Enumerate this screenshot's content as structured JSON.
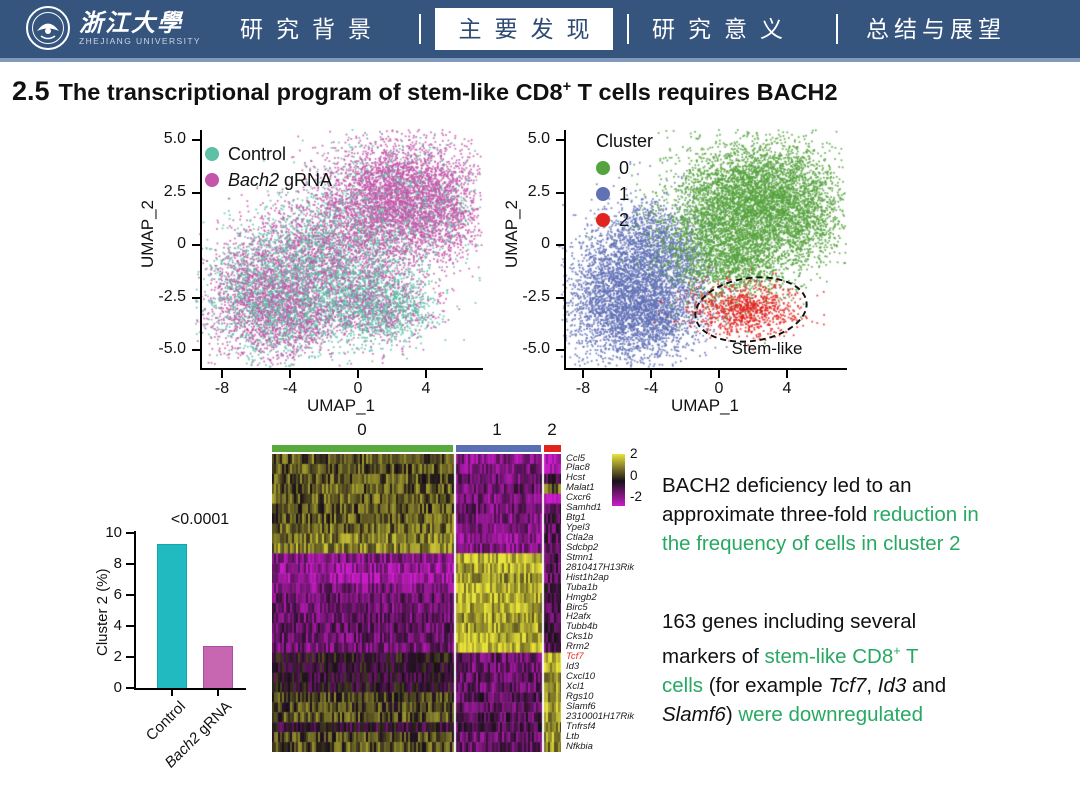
{
  "colors": {
    "text_green": "#28a963",
    "header_blue": "#35547e",
    "header_strip": "#8099bb"
  },
  "header": {
    "bg_color": "#35547e",
    "university_cn": "浙江大學",
    "university_en": "ZHEJIANG UNIVERSITY",
    "nav": [
      {
        "label": "研究背景",
        "active": false
      },
      {
        "label": "主要发现",
        "active": true
      },
      {
        "label": "研究意义",
        "active": false
      },
      {
        "label": "总结与展望",
        "active": false
      }
    ]
  },
  "title": {
    "number": "2.5",
    "segments": [
      {
        "t": "The transcriptional program of stem-like CD8"
      },
      {
        "t": "+",
        "sup": true
      },
      {
        "t": " T cells requires BACH2"
      }
    ]
  },
  "chart_data": [
    {
      "type": "scatter",
      "name": "umap-genotype",
      "xlabel": "UMAP_1",
      "ylabel": "UMAP_2",
      "xticks": {
        "labels": [
          "-8",
          "-4",
          "0",
          "4"
        ],
        "values": [
          -8,
          -4,
          0,
          4
        ]
      },
      "yticks": {
        "labels": [
          "5.0",
          "2.5",
          "0",
          "-2.5",
          "-5.0"
        ],
        "values": [
          5,
          2.5,
          0,
          -2.5,
          -5
        ]
      },
      "legend": [
        {
          "color": "#5cbfa6",
          "segments": [
            {
              "t": "Control"
            }
          ]
        },
        {
          "color": "#c455aa",
          "segments": [
            {
              "t": "Bach2",
              "italic": true
            },
            {
              "t": " gRNA"
            }
          ]
        }
      ],
      "blobs": [
        {
          "cx": -5.9,
          "cy": -2.3,
          "sx": 1.55,
          "sy": 1.6,
          "n": 2600,
          "pm": 0.58
        },
        {
          "cx": -2.9,
          "cy": -0.9,
          "sx": 1.5,
          "sy": 1.4,
          "n": 1600,
          "pm": 0.45
        },
        {
          "cx": 0.3,
          "cy": 1.1,
          "sx": 2.0,
          "sy": 1.6,
          "n": 2400,
          "pm": 0.66
        },
        {
          "cx": 2.9,
          "cy": 2.5,
          "sx": 2.0,
          "sy": 1.3,
          "n": 2800,
          "pm": 0.88
        },
        {
          "cx": 5.0,
          "cy": 1.2,
          "sx": 1.2,
          "sy": 1.1,
          "n": 600,
          "pm": 0.8
        },
        {
          "cx": 0.3,
          "cy": -2.3,
          "sx": 1.9,
          "sy": 1.1,
          "n": 1500,
          "pm": 0.32
        },
        {
          "cx": 1.5,
          "cy": -3.2,
          "sx": 1.5,
          "sy": 0.7,
          "n": 800,
          "pm": 0.45
        },
        {
          "cx": -3.7,
          "cy": -3.6,
          "sx": 1.4,
          "sy": 0.85,
          "n": 800,
          "pm": 0.58
        }
      ]
    },
    {
      "type": "scatter",
      "name": "umap-clusters",
      "xlabel": "UMAP_1",
      "ylabel": "UMAP_2",
      "legend_title": "Cluster",
      "xticks": {
        "labels": [
          "-8",
          "-4",
          "0",
          "4"
        ],
        "values": [
          -8,
          -4,
          0,
          4
        ]
      },
      "yticks": {
        "labels": [
          "5.0",
          "2.5",
          "0",
          "-2.5",
          "-5.0"
        ],
        "values": [
          5,
          2.5,
          0,
          -2.5,
          -5
        ]
      },
      "clusters": [
        {
          "name": "0",
          "color": "#55a33e"
        },
        {
          "name": "1",
          "color": "#6171b6"
        },
        {
          "name": "2",
          "color": "#e22420"
        }
      ],
      "annotation": {
        "label": "Stem-like"
      },
      "blobs": [
        {
          "cx": -5.9,
          "cy": -2.3,
          "sx": 1.55,
          "sy": 1.6,
          "n": 2600,
          "cluster": 1
        },
        {
          "cx": -3.0,
          "cy": -0.9,
          "sx": 1.5,
          "sy": 1.4,
          "n": 1500,
          "cluster": 1
        },
        {
          "cx": -3.7,
          "cy": -3.6,
          "sx": 1.4,
          "sy": 0.85,
          "n": 800,
          "cluster": 1
        },
        {
          "cx": -4.6,
          "cy": 0.4,
          "sx": 1.1,
          "sy": 0.9,
          "n": 400,
          "cluster": 1
        },
        {
          "cx": 0.4,
          "cy": 1.1,
          "sx": 2.0,
          "sy": 1.6,
          "n": 2500,
          "cluster": 0
        },
        {
          "cx": 2.9,
          "cy": 2.5,
          "sx": 2.0,
          "sy": 1.3,
          "n": 2800,
          "cluster": 0
        },
        {
          "cx": 5.0,
          "cy": 1.0,
          "sx": 1.2,
          "sy": 1.1,
          "n": 600,
          "cluster": 0
        },
        {
          "cx": 0.9,
          "cy": -0.8,
          "sx": 1.7,
          "sy": 0.9,
          "n": 900,
          "cluster": 0
        },
        {
          "cx": 1.5,
          "cy": -3.05,
          "sx": 1.5,
          "sy": 0.62,
          "n": 900,
          "cluster": 2
        }
      ]
    },
    {
      "type": "bar",
      "name": "cluster2-frequency",
      "ylabel": "Cluster 2 (%)",
      "ylim": [
        0,
        10
      ],
      "yticks": {
        "labels": [
          "0",
          "2",
          "4",
          "6",
          "8",
          "10"
        ],
        "values": [
          0,
          2,
          4,
          6,
          8,
          10
        ]
      },
      "pvalue": "<0.0001",
      "categories": [
        "Control",
        "Bach2 gRNA"
      ],
      "values": [
        9.3,
        2.7
      ],
      "bars": [
        {
          "value": 9.3,
          "color": "#22bac1",
          "border": "#17a3aa",
          "segments": [
            {
              "t": "Control"
            }
          ]
        },
        {
          "value": 2.7,
          "color": "#c767b1",
          "border": "#a94f9d",
          "segments": [
            {
              "t": "Bach2",
              "italic": true
            },
            {
              "t": " gRNA"
            }
          ]
        }
      ]
    },
    {
      "type": "heatmap",
      "name": "deg-heatmap",
      "col_labels": [
        "0",
        "1",
        "2"
      ],
      "col_colors": [
        "#5aa93c",
        "#5b6fb5",
        "#e0251f"
      ],
      "scale": {
        "ticks": [
          "2",
          "0",
          "-2"
        ],
        "top_color": "#e9e43a",
        "mid_color": "#181018",
        "bottom_color": "#cc1cca"
      },
      "genes": [
        {
          "name": "Ccl5",
          "values": [
            0.7,
            -1.2,
            -1.9
          ]
        },
        {
          "name": "Plac8",
          "values": [
            0.6,
            -1.1,
            -1.7
          ]
        },
        {
          "name": "Hcst",
          "values": [
            0.6,
            -1.0,
            -0.6
          ]
        },
        {
          "name": "Malat1",
          "values": [
            0.7,
            -0.9,
            0.8
          ]
        },
        {
          "name": "Cxcr6",
          "values": [
            0.7,
            -1.1,
            -2.0
          ]
        },
        {
          "name": "Samhd1",
          "values": [
            0.6,
            -1.0,
            -0.9
          ]
        },
        {
          "name": "Btg1",
          "values": [
            0.7,
            -1.1,
            -0.5
          ]
        },
        {
          "name": "Ypel3",
          "values": [
            0.8,
            -1.2,
            -0.7
          ]
        },
        {
          "name": "Ctla2a",
          "values": [
            1.0,
            -1.3,
            -0.8
          ]
        },
        {
          "name": "Sdcbp2",
          "values": [
            1.1,
            -1.2,
            -0.9
          ]
        },
        {
          "name": "Stmn1",
          "values": [
            -1.2,
            1.5,
            -0.6
          ]
        },
        {
          "name": "2810417H13Rik",
          "values": [
            -1.4,
            1.4,
            -0.7
          ]
        },
        {
          "name": "Hist1h2ap",
          "values": [
            -1.5,
            1.3,
            -0.8
          ]
        },
        {
          "name": "Tuba1b",
          "values": [
            -1.1,
            1.5,
            -0.5
          ]
        },
        {
          "name": "Hmgb2",
          "values": [
            -0.9,
            1.5,
            -0.6
          ]
        },
        {
          "name": "Birc5",
          "values": [
            -1.0,
            1.4,
            -0.7
          ]
        },
        {
          "name": "H2afx",
          "values": [
            -0.9,
            1.3,
            -0.6
          ]
        },
        {
          "name": "Tubb4b",
          "values": [
            -0.8,
            1.4,
            -0.5
          ]
        },
        {
          "name": "Cks1b",
          "values": [
            -0.9,
            1.5,
            -0.7
          ]
        },
        {
          "name": "Rrm2",
          "values": [
            -1.0,
            1.6,
            -0.6
          ]
        },
        {
          "name": "Tcf7",
          "values": [
            -0.1,
            -0.9,
            1.7
          ],
          "highlight": "#e8302a"
        },
        {
          "name": "Id3",
          "values": [
            -0.2,
            -1.0,
            1.5
          ]
        },
        {
          "name": "Cxcl10",
          "values": [
            -0.3,
            -0.8,
            1.2
          ]
        },
        {
          "name": "Xcl1",
          "values": [
            -0.2,
            -0.9,
            1.4
          ]
        },
        {
          "name": "Rgs10",
          "values": [
            0.5,
            -0.7,
            1.3
          ]
        },
        {
          "name": "Slamf6",
          "values": [
            0.5,
            -0.8,
            1.5
          ]
        },
        {
          "name": "2310001H17Rik",
          "values": [
            0.6,
            -0.7,
            1.2
          ]
        },
        {
          "name": "Tnfrsf4",
          "values": [
            -0.3,
            -0.6,
            1.0
          ]
        },
        {
          "name": "Ltb",
          "values": [
            0.5,
            -0.9,
            1.3
          ]
        },
        {
          "name": "Nfkbia",
          "values": [
            0.6,
            -0.8,
            1.1
          ]
        }
      ]
    }
  ],
  "notes": [
    {
      "segments": [
        {
          "t": "BACH2 deficiency led to an"
        },
        {
          "br": true
        },
        {
          "t": "approximate three-fold "
        },
        {
          "t": "reduction in",
          "green": true
        },
        {
          "br": true
        },
        {
          "t": "the frequency of cells in cluster 2",
          "green": true
        }
      ]
    },
    {
      "segments": [
        {
          "t": "163 genes including several"
        },
        {
          "br": true
        },
        {
          "t": "markers of "
        },
        {
          "t": "stem-like CD8",
          "green": true
        },
        {
          "t": "+",
          "green": true,
          "sup": true
        },
        {
          "t": " T",
          "green": true
        },
        {
          "br": true
        },
        {
          "t": "cells",
          "green": true
        },
        {
          "t": " (for example "
        },
        {
          "t": "Tcf7",
          "italic": true
        },
        {
          "t": ", "
        },
        {
          "t": "Id3",
          "italic": true
        },
        {
          "t": " and"
        },
        {
          "br": true
        },
        {
          "t": "Slamf6",
          "italic": true
        },
        {
          "t": ") "
        },
        {
          "t": "were downregulated",
          "green": true
        }
      ]
    }
  ]
}
